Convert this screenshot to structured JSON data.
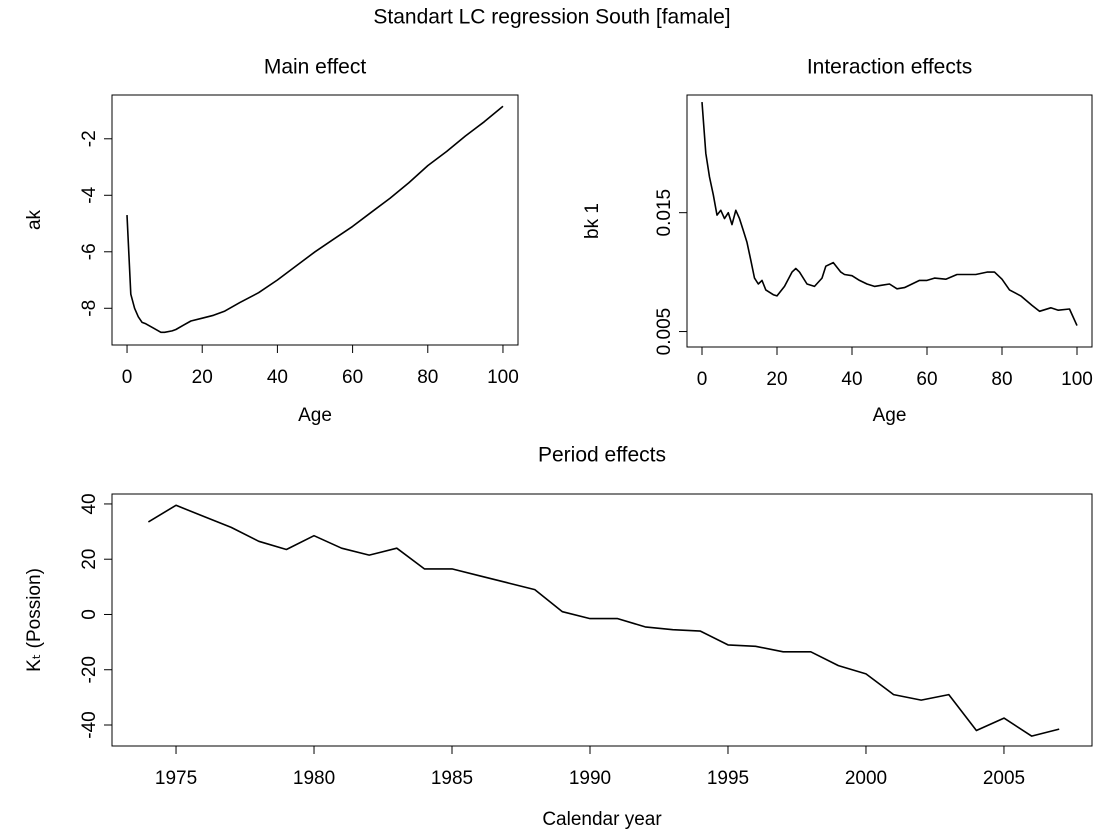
{
  "title": "Standart LC regression South [famale]",
  "chart_data": [
    {
      "type": "line",
      "title": "Main effect",
      "x_label": "Age",
      "y_label": "ak",
      "color": "#000000",
      "x": [
        0,
        1,
        2,
        3,
        4,
        5,
        7,
        9,
        10,
        12,
        13,
        15,
        17,
        20,
        23,
        26,
        30,
        35,
        40,
        45,
        50,
        55,
        60,
        65,
        70,
        75,
        80,
        85,
        90,
        95,
        100
      ],
      "values": [
        -4.7,
        -7.5,
        -8.0,
        -8.3,
        -8.5,
        -8.55,
        -8.7,
        -8.85,
        -8.85,
        -8.8,
        -8.75,
        -8.6,
        -8.45,
        -8.35,
        -8.25,
        -8.1,
        -7.8,
        -7.45,
        -7.0,
        -6.5,
        -6.0,
        -5.55,
        -5.1,
        -4.6,
        -4.1,
        -3.55,
        -2.95,
        -2.45,
        -1.9,
        -1.4,
        -0.85
      ],
      "xlim": [
        -4,
        104
      ],
      "ylim": [
        -9.3,
        -0.45
      ],
      "xticks": [
        0,
        20,
        40,
        60,
        80,
        100
      ],
      "yticks": [
        -8,
        -6,
        -4,
        -2
      ]
    },
    {
      "type": "line",
      "title": "Interaction effects",
      "x_label": "Age",
      "y_label": "bk 1",
      "color": "#000000",
      "x": [
        0,
        1,
        2,
        3,
        4,
        5,
        6,
        7,
        8,
        9,
        10,
        11,
        12,
        13,
        14,
        15,
        16,
        17,
        19,
        20,
        22,
        24,
        25,
        26,
        28,
        30,
        32,
        33,
        35,
        37,
        38,
        40,
        42,
        44,
        46,
        48,
        50,
        52,
        54,
        56,
        58,
        60,
        62,
        65,
        68,
        70,
        73,
        76,
        78,
        80,
        82,
        85,
        88,
        90,
        93,
        95,
        98,
        100
      ],
      "values": [
        0.0243,
        0.02,
        0.018,
        0.0165,
        0.0148,
        0.0152,
        0.0145,
        0.015,
        0.014,
        0.0152,
        0.0145,
        0.0135,
        0.0125,
        0.011,
        0.0095,
        0.009,
        0.0093,
        0.0085,
        0.0081,
        0.008,
        0.0088,
        0.01,
        0.0103,
        0.01,
        0.009,
        0.0088,
        0.0095,
        0.0105,
        0.0108,
        0.01,
        0.0098,
        0.0097,
        0.0093,
        0.009,
        0.0088,
        0.0089,
        0.009,
        0.0086,
        0.0087,
        0.009,
        0.0093,
        0.0093,
        0.0095,
        0.0094,
        0.0098,
        0.0098,
        0.0098,
        0.01,
        0.01,
        0.0094,
        0.0085,
        0.008,
        0.0072,
        0.0067,
        0.007,
        0.0068,
        0.0069,
        0.0055
      ],
      "xlim": [
        -4,
        104
      ],
      "ylim": [
        0.0037,
        0.0249
      ],
      "xticks": [
        0,
        20,
        40,
        60,
        80,
        100
      ],
      "yticks": [
        0.005,
        0.015
      ]
    },
    {
      "type": "line",
      "title": "Period effects",
      "x_label": "Calendar year",
      "y_label": "Kₜ (Possion)",
      "color": "#000000",
      "x": [
        1974,
        1975,
        1976,
        1977,
        1978,
        1979,
        1980,
        1981,
        1982,
        1983,
        1984,
        1985,
        1986,
        1987,
        1988,
        1989,
        1990,
        1991,
        1992,
        1993,
        1994,
        1995,
        1996,
        1997,
        1998,
        1999,
        2000,
        2001,
        2002,
        2003,
        2004,
        2005,
        2006,
        2007
      ],
      "values": [
        33.5,
        39.5,
        35.5,
        31.5,
        26.5,
        23.5,
        28.5,
        24,
        21.5,
        24,
        16.5,
        16.5,
        14,
        11.5,
        9,
        1,
        -1.5,
        -1.5,
        -4.5,
        -5.5,
        -6,
        -11,
        -11.5,
        -13.5,
        -13.5,
        -18.5,
        -21.5,
        -29,
        -31,
        -29,
        -42,
        -37.5,
        -44,
        -41.5
      ],
      "xlim": [
        1972.68,
        2008.19
      ],
      "ylim": [
        -47.6,
        43.6
      ],
      "xticks": [
        1975,
        1980,
        1985,
        1990,
        1995,
        2000,
        2005
      ],
      "yticks": [
        -40,
        -20,
        0,
        20,
        40
      ]
    }
  ]
}
